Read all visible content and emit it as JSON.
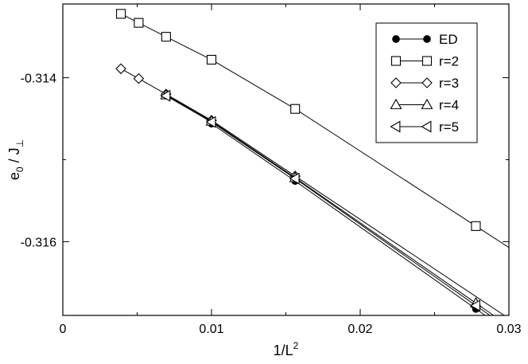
{
  "chart_data": {
    "type": "line",
    "title": "",
    "xlabel": {
      "main": "1/L",
      "sup": "2"
    },
    "ylabel": {
      "main": "e",
      "sub0": "0",
      "mid": " / J",
      "sub1": "⊥"
    },
    "xlim": [
      0,
      0.03
    ],
    "ylim": [
      -0.3169,
      -0.3131
    ],
    "x_ticks": [
      0,
      0.01,
      0.02,
      0.03
    ],
    "x_tick_labels": [
      "0",
      "0.01",
      "0.02",
      "0.03"
    ],
    "y_ticks": [
      -0.314,
      -0.316
    ],
    "y_tick_labels": [
      "-0.314",
      "-0.316"
    ],
    "grid": false,
    "legend_position": "top-right",
    "series": [
      {
        "name": "ED",
        "marker": "filled-circle",
        "x": [
          0.01,
          0.015625,
          0.027778
        ],
        "y": [
          -0.31456,
          -0.31526,
          -0.31682
        ]
      },
      {
        "name": "r=2",
        "marker": "open-square",
        "x": [
          0.003906,
          0.005102,
          0.006944,
          0.01,
          0.015625,
          0.027778
        ],
        "y": [
          -0.31322,
          -0.31333,
          -0.3135,
          -0.31378,
          -0.31438,
          -0.31581
        ]
      },
      {
        "name": "r=3",
        "marker": "open-diamond",
        "x": [
          0.003906,
          0.005102,
          0.006944,
          0.01,
          0.015625
        ],
        "y": [
          -0.31389,
          -0.31401,
          -0.3142,
          -0.31452,
          -0.3152
        ]
      },
      {
        "name": "r=4",
        "marker": "open-triangle-up",
        "x": [
          0.006944,
          0.01,
          0.015625,
          0.027778
        ],
        "y": [
          -0.31421,
          -0.31453,
          -0.31522,
          -0.31675
        ]
      },
      {
        "name": "r=5",
        "marker": "open-triangle-left",
        "x": [
          0.006944,
          0.01,
          0.015625,
          0.027778
        ],
        "y": [
          -0.31422,
          -0.31454,
          -0.31523,
          -0.31678
        ]
      }
    ],
    "legend_entries": [
      "ED",
      "r=2",
      "r=3",
      "r=4",
      "r=5"
    ]
  }
}
